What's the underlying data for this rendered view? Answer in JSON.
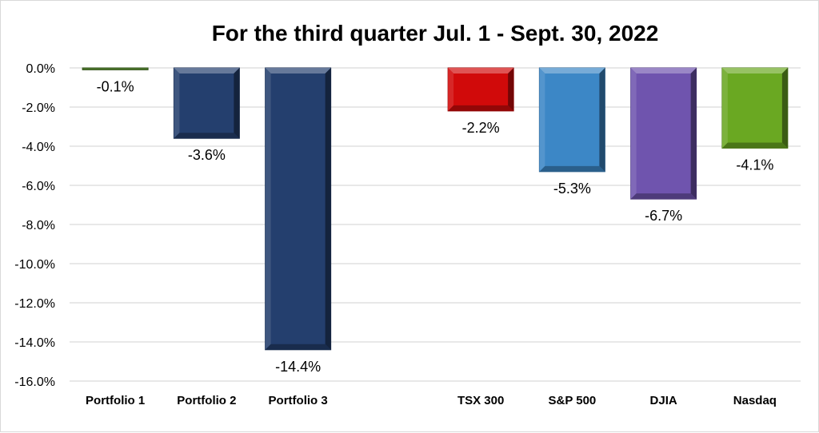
{
  "chart_data": {
    "type": "bar",
    "title": "For the third quarter Jul. 1 - Sept. 30, 2022",
    "xlabel": "",
    "ylabel": "",
    "categories": [
      "Portfolio 1",
      "Portfolio 2",
      "Portfolio 3",
      "",
      "TSX 300",
      "S&P 500",
      "DJIA",
      "Nasdaq"
    ],
    "values": [
      -0.1,
      -3.6,
      -14.4,
      null,
      -2.2,
      -5.3,
      -6.7,
      -4.1
    ],
    "data_labels": [
      "-0.1%",
      "-3.6%",
      "-14.4%",
      "",
      "-2.2%",
      "-5.3%",
      "-6.7%",
      "-4.1%"
    ],
    "colors": [
      "#4e7a2c",
      "#243f6e",
      "#243f6e",
      "",
      "#d10a0a",
      "#3c87c6",
      "#6f54ae",
      "#6aa822"
    ],
    "ylim": [
      -16,
      0
    ],
    "yticks": [
      0,
      -2,
      -4,
      -6,
      -8,
      -10,
      -12,
      -14,
      -16
    ],
    "ytick_labels": [
      "0.0%",
      "-2.0%",
      "-4.0%",
      "-6.0%",
      "-8.0%",
      "-10.0%",
      "-12.0%",
      "-14.0%",
      "-16.0%"
    ],
    "grid": true,
    "legend": "none"
  }
}
